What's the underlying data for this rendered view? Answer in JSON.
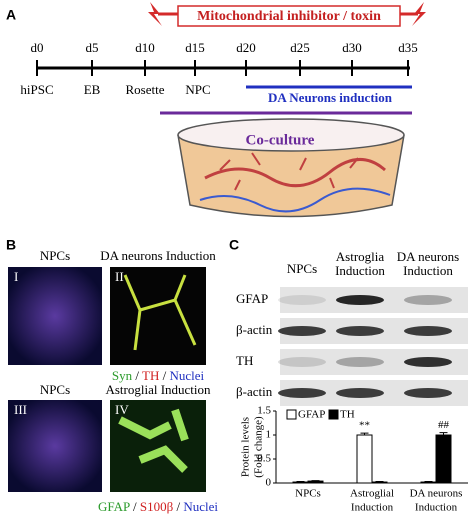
{
  "panel_a": {
    "label": "A",
    "toxin": "Mitochondrial inhibitor / toxin",
    "days": [
      "d0",
      "d5",
      "d10",
      "d15",
      "d20",
      "d25",
      "d30",
      "d35"
    ],
    "stages": [
      "hiPSC",
      "EB",
      "Rosette",
      "NPC"
    ],
    "induction": "DA Neurons induction",
    "coculture": "Co-culture"
  },
  "panel_b": {
    "label": "B",
    "top": {
      "headers": [
        "NPCs",
        "DA neurons Induction"
      ],
      "numerals": [
        "I",
        "II"
      ],
      "caption": [
        {
          "text": "Syn",
          "color": "#2a9a2a"
        },
        {
          "text": " / ",
          "color": "#000"
        },
        {
          "text": "TH",
          "color": "#d02020"
        },
        {
          "text": " / ",
          "color": "#000"
        },
        {
          "text": "Nuclei",
          "color": "#2030c0"
        }
      ]
    },
    "bottom": {
      "headers": [
        "NPCs",
        "Astroglial Induction"
      ],
      "numerals": [
        "III",
        "IV"
      ],
      "caption": [
        {
          "text": "GFAP",
          "color": "#2a9a2a"
        },
        {
          "text": " / ",
          "color": "#000"
        },
        {
          "text": "S100β",
          "color": "#d02020"
        },
        {
          "text": " / ",
          "color": "#000"
        },
        {
          "text": "Nuclei",
          "color": "#2030c0"
        }
      ]
    }
  },
  "panel_c": {
    "label": "C",
    "headers": [
      [
        "NPCs"
      ],
      [
        "Astroglia",
        "Induction"
      ],
      [
        "DA neurons",
        "Induction"
      ]
    ],
    "rows": [
      "GFAP",
      "β-actin",
      "TH",
      "β-actin"
    ]
  },
  "chart_data": {
    "type": "bar",
    "ylabel": [
      "Protein levels",
      "(Fold change)"
    ],
    "categories": [
      [
        "NPCs"
      ],
      [
        "Astroglial",
        "Induction"
      ],
      [
        "DA neurons",
        "Induction"
      ]
    ],
    "series": [
      {
        "name": "GFAP",
        "color": "#ffffff",
        "values": [
          0.02,
          1.0,
          0.02
        ],
        "errors": [
          0.01,
          0.04,
          0.01
        ],
        "annotations": [
          null,
          "**",
          null
        ]
      },
      {
        "name": "TH",
        "color": "#000000",
        "values": [
          0.04,
          0.02,
          1.0
        ],
        "errors": [
          0.01,
          0.01,
          0.05
        ],
        "annotations": [
          null,
          null,
          "##"
        ]
      }
    ],
    "ylim": [
      0,
      1.5
    ],
    "yticks": [
      0,
      0.5,
      1,
      1.5
    ]
  }
}
